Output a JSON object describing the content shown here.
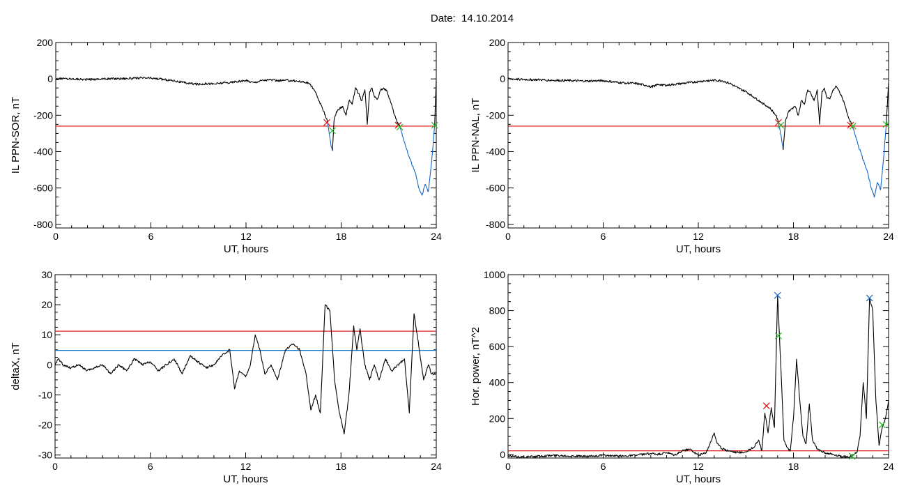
{
  "page": {
    "title": "Date:  14.10.2014"
  },
  "chart_data": [
    {
      "id": "sor",
      "type": "line",
      "xlabel": "UT, hours",
      "ylabel": "IL PPN-SOR, nT",
      "xlim": [
        0,
        24
      ],
      "ylim": [
        -820,
        200
      ],
      "xticks": [
        0,
        6,
        12,
        18,
        24
      ],
      "yticks": [
        -800,
        -600,
        -400,
        -200,
        0,
        200
      ],
      "grid": false,
      "threshold_lines": [
        {
          "y": -260,
          "color": "#dd0000"
        }
      ],
      "series": [
        {
          "color": "#000000",
          "x": [
            0,
            0.5,
            1,
            2,
            3,
            4,
            5,
            5.8,
            6.5,
            7,
            7.5,
            8,
            8.5,
            9,
            9.5,
            10,
            10.5,
            11,
            11.5,
            12,
            12.5,
            13,
            13.5,
            14,
            14.5,
            15,
            15.5,
            16,
            16.3,
            16.6,
            16.9,
            17.1,
            17.15
          ],
          "y": [
            0,
            2,
            0,
            -3,
            0,
            2,
            3,
            5,
            0,
            -5,
            -10,
            -20,
            -25,
            -30,
            -25,
            -28,
            -22,
            -20,
            -15,
            -10,
            -20,
            -8,
            -5,
            -10,
            -8,
            -10,
            -15,
            -25,
            -60,
            -120,
            -180,
            -220,
            -245
          ]
        },
        {
          "color": "#1166cc",
          "x": [
            17.15,
            17.25,
            17.35,
            17.45
          ],
          "y": [
            -245,
            -300,
            -360,
            -395
          ]
        },
        {
          "color": "#000000",
          "x": [
            17.45,
            17.55,
            17.7,
            17.9,
            18.1,
            18.3,
            18.5,
            18.7,
            18.9,
            19.1,
            19.3,
            19.5,
            19.65,
            19.8,
            19.95,
            20.1,
            20.3,
            20.5,
            20.7,
            20.9,
            21.1,
            21.3,
            21.45,
            21.6,
            21.7
          ],
          "y": [
            -395,
            -230,
            -180,
            -165,
            -150,
            -200,
            -120,
            -140,
            -50,
            -80,
            -120,
            -60,
            -250,
            -70,
            -50,
            -100,
            -110,
            -60,
            -50,
            -70,
            -120,
            -180,
            -220,
            -250,
            -260
          ]
        },
        {
          "color": "#1166cc",
          "x": [
            21.7,
            21.9,
            22.1,
            22.3,
            22.5,
            22.7,
            22.9,
            23.1,
            23.3,
            23.5,
            23.7,
            23.8,
            23.9
          ],
          "y": [
            -260,
            -320,
            -380,
            -430,
            -480,
            -520,
            -600,
            -640,
            -580,
            -620,
            -460,
            -360,
            -255
          ]
        },
        {
          "color": "#000000",
          "x": [
            23.9,
            24
          ],
          "y": [
            -255,
            0
          ]
        }
      ],
      "markers": [
        {
          "x": 17.1,
          "y": -240,
          "color": "#dd0000"
        },
        {
          "x": 17.45,
          "y": -285,
          "color": "#22bb22"
        },
        {
          "x": 21.6,
          "y": -255,
          "color": "#dd0000"
        },
        {
          "x": 21.7,
          "y": -265,
          "color": "#22bb22"
        },
        {
          "x": 23.9,
          "y": -255,
          "color": "#22bb22"
        }
      ]
    },
    {
      "id": "nal",
      "type": "line",
      "xlabel": "UT, hours",
      "ylabel": "IL PPN-NAL, nT",
      "xlim": [
        0,
        24
      ],
      "ylim": [
        -820,
        200
      ],
      "xticks": [
        0,
        6,
        12,
        18,
        24
      ],
      "yticks": [
        -800,
        -600,
        -400,
        -200,
        0,
        200
      ],
      "grid": false,
      "threshold_lines": [
        {
          "y": -260,
          "color": "#dd0000"
        }
      ],
      "series": [
        {
          "color": "#000000",
          "x": [
            0,
            1,
            2,
            3,
            4,
            5,
            6,
            7,
            8,
            8.7,
            9,
            9.5,
            10,
            10.5,
            11,
            11.5,
            12,
            12.5,
            13,
            13.5,
            14,
            14.5,
            15,
            15.5,
            16,
            16.5,
            16.9,
            17.05
          ],
          "y": [
            0,
            -3,
            -5,
            -8,
            -10,
            -12,
            -10,
            -20,
            -25,
            -35,
            -45,
            -30,
            -35,
            -30,
            -25,
            -20,
            -15,
            -10,
            -8,
            -10,
            -25,
            -50,
            -70,
            -100,
            -130,
            -160,
            -200,
            -240
          ]
        },
        {
          "color": "#1166cc",
          "x": [
            17.05,
            17.15,
            17.25,
            17.35
          ],
          "y": [
            -240,
            -280,
            -330,
            -390
          ]
        },
        {
          "color": "#000000",
          "x": [
            17.35,
            17.5,
            17.7,
            17.9,
            18.1,
            18.3,
            18.5,
            18.7,
            18.9,
            19.1,
            19.3,
            19.5,
            19.65,
            19.8,
            19.95,
            20.1,
            20.3,
            20.5,
            20.7,
            20.9,
            21.1,
            21.3,
            21.5,
            21.7
          ],
          "y": [
            -390,
            -230,
            -180,
            -165,
            -150,
            -200,
            -120,
            -140,
            -60,
            -80,
            -120,
            -60,
            -250,
            -70,
            -50,
            -100,
            -110,
            -60,
            -40,
            -70,
            -110,
            -160,
            -220,
            -255
          ]
        },
        {
          "color": "#1166cc",
          "x": [
            21.7,
            21.9,
            22.1,
            22.3,
            22.5,
            22.7,
            22.9,
            23.1,
            23.3,
            23.5,
            23.7,
            23.85
          ],
          "y": [
            -255,
            -310,
            -370,
            -420,
            -470,
            -520,
            -600,
            -650,
            -570,
            -610,
            -420,
            -255
          ]
        },
        {
          "color": "#000000",
          "x": [
            23.85,
            24
          ],
          "y": [
            -255,
            -20
          ]
        }
      ],
      "markers": [
        {
          "x": 17.05,
          "y": -240,
          "color": "#dd0000"
        },
        {
          "x": 17.2,
          "y": -255,
          "color": "#22bb22"
        },
        {
          "x": 21.6,
          "y": -255,
          "color": "#dd0000"
        },
        {
          "x": 21.75,
          "y": -260,
          "color": "#22bb22"
        },
        {
          "x": 23.85,
          "y": -250,
          "color": "#22bb22"
        }
      ]
    },
    {
      "id": "deltax",
      "type": "line",
      "xlabel": "UT, hours",
      "ylabel": "deltaX, nT",
      "xlim": [
        0,
        24
      ],
      "ylim": [
        -31,
        30
      ],
      "xticks": [
        0,
        6,
        12,
        18,
        24
      ],
      "yticks": [
        -30,
        -20,
        -10,
        0,
        10,
        20,
        30
      ],
      "grid": false,
      "threshold_lines": [
        {
          "y": 11.2,
          "color": "#dd0000"
        },
        {
          "y": 4.8,
          "color": "#1177cc"
        }
      ],
      "series": [
        {
          "color": "#000000",
          "x": [
            0,
            0.2,
            0.5,
            1,
            1.5,
            2,
            2.5,
            3,
            3.5,
            4,
            4.5,
            5,
            5.5,
            6,
            6.5,
            7,
            7.5,
            8,
            8.5,
            9,
            9.5,
            10,
            10.5,
            11,
            11.3,
            11.6,
            12,
            12.3,
            12.6,
            12.9,
            13.2,
            13.6,
            14,
            14.5,
            15,
            15.4,
            15.8,
            16.1,
            16.4,
            16.7,
            17,
            17.3,
            17.6,
            17.9,
            18.2,
            18.5,
            18.8,
            19,
            19.2,
            19.5,
            19.8,
            20.1,
            20.4,
            20.8,
            21.2,
            21.6,
            22,
            22.3,
            22.6,
            22.8,
            23.2,
            23.5,
            23.7,
            24
          ],
          "y": [
            0,
            2,
            0,
            -1,
            0,
            -2,
            -1,
            0,
            -3,
            0,
            -2,
            2,
            0,
            1,
            -2,
            0,
            2,
            -3,
            3,
            1,
            -1,
            0,
            3,
            5,
            -8,
            -2,
            -4,
            0,
            10,
            5,
            -3,
            0,
            -5,
            5,
            7,
            5,
            -3,
            -15,
            -10,
            -16,
            20,
            18,
            -5,
            -16,
            -23,
            -10,
            13,
            5,
            12,
            0,
            -5,
            0,
            -5,
            2,
            -2,
            0,
            2,
            -16,
            17,
            10,
            -5,
            0,
            -3,
            -3
          ]
        }
      ],
      "markers": []
    },
    {
      "id": "power",
      "type": "line",
      "xlabel": "UT, hours",
      "ylabel": "Hor. power, nT^2",
      "xlim": [
        0,
        24
      ],
      "ylim": [
        -20,
        1000
      ],
      "xticks": [
        0,
        6,
        12,
        18,
        24
      ],
      "yticks": [
        0,
        200,
        400,
        600,
        800,
        1000
      ],
      "grid": false,
      "threshold_lines": [
        {
          "y": 20,
          "color": "#dd0000"
        }
      ],
      "series": [
        {
          "color": "#000000",
          "x": [
            0,
            1,
            2,
            3,
            4,
            5,
            6,
            7,
            8,
            9,
            9.5,
            10,
            10.5,
            11,
            11.5,
            12,
            12.5,
            13,
            13.2,
            13.5,
            14,
            14.5,
            15,
            15.5,
            15.8,
            16,
            16.2,
            16.4,
            16.6,
            16.8,
            17,
            17.2,
            17.4,
            17.6,
            17.8,
            18,
            18.2,
            18.4,
            18.6,
            18.8,
            19,
            19.2,
            19.5,
            20,
            20.5,
            21,
            21.5,
            22,
            22.2,
            22.4,
            22.6,
            22.8,
            23,
            23.2,
            23.4,
            23.6,
            23.8,
            24
          ],
          "y": [
            -10,
            -15,
            -10,
            -5,
            -8,
            -12,
            -5,
            -10,
            -5,
            5,
            0,
            10,
            -5,
            20,
            30,
            -5,
            10,
            120,
            60,
            30,
            20,
            10,
            15,
            40,
            80,
            20,
            230,
            120,
            260,
            150,
            885,
            500,
            80,
            40,
            20,
            200,
            530,
            300,
            100,
            60,
            280,
            80,
            30,
            10,
            0,
            -10,
            -15,
            10,
            100,
            400,
            200,
            870,
            800,
            300,
            50,
            150,
            200,
            300
          ]
        }
      ],
      "markers": [
        {
          "x": 17.0,
          "y": 885,
          "color": "#1166cc"
        },
        {
          "x": 17.05,
          "y": 660,
          "color": "#22bb22"
        },
        {
          "x": 16.3,
          "y": 270,
          "color": "#dd0000"
        },
        {
          "x": 22.8,
          "y": 870,
          "color": "#1166cc"
        },
        {
          "x": 23.6,
          "y": 165,
          "color": "#22bb22"
        },
        {
          "x": 21.7,
          "y": -10,
          "color": "#22bb22"
        }
      ]
    }
  ]
}
